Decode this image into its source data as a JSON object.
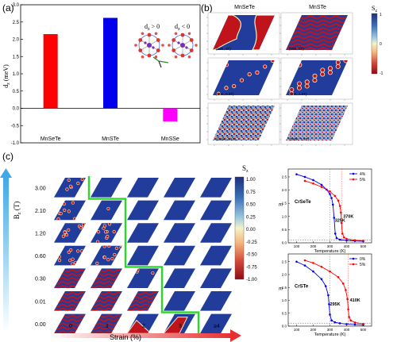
{
  "panel_labels": {
    "a": "(a)",
    "b": "(b)",
    "c": "(c)"
  },
  "panel_a": {
    "ylabel": "d_z (meV)",
    "ylabel_main": "d",
    "ylabel_sub": "z",
    "ylabel_unit": " (meV)",
    "inset_left": "d_z > 0",
    "inset_left_main": "d",
    "inset_left_sub": "z",
    "inset_left_rest": " > 0",
    "inset_right": "d_z < 0",
    "inset_right_main": "d",
    "inset_right_sub": "z",
    "inset_right_rest": " < 0",
    "ytick_labels": [
      "3.0",
      "2.5",
      "2.0",
      "1.5",
      "1.0",
      "0.5",
      "0.0",
      "-0.5",
      "-1.0"
    ]
  },
  "panel_b": {
    "col_titles": [
      "MnSeTe",
      "MnSTe"
    ],
    "colorbar_label": "S_z",
    "colorbar_main": "S",
    "colorbar_sub": "z",
    "colorbar_ticks": [
      "1",
      "0",
      "-1"
    ],
    "frame_labels": [
      [
        "(10K, 0T)",
        "(10K, 0T)"
      ],
      [
        "(10K, 0.5T)",
        "(10K, 1.5T)"
      ],
      [
        "(150K, 0.5T)",
        "(150K, 1.5T)"
      ]
    ]
  },
  "panel_c": {
    "ylabel_main": "B",
    "ylabel_sub": "z",
    "ylabel_unit": " (T)",
    "field_labels": [
      "3.00",
      "2.10",
      "1.20",
      "0.60",
      "0.30",
      "0.01",
      "0.00"
    ],
    "strain_labels": [
      "0",
      "1",
      "2",
      "3",
      "≥4"
    ],
    "xlabel": "Strain (%)",
    "colorbar_main": "S",
    "colorbar_sub": "z",
    "colorbar_ticks": [
      "1.00",
      "0.75",
      "0.50",
      "0.25",
      "0.00",
      "-0.25",
      "-0.50",
      "-0.75",
      "-1.00"
    ]
  },
  "mt_top": {
    "material": "CrSeTe",
    "ylabel": "m",
    "xlabel": "Temperature (K)",
    "legend": [
      "4%",
      "5%"
    ],
    "tc_label": "325K",
    "tc_label2": "370K",
    "xticks": [
      "100",
      "200",
      "300",
      "400",
      "500"
    ],
    "yticks": [
      "2.5",
      "2.0",
      "1.5",
      "1.0",
      "0.5",
      "0.0"
    ]
  },
  "mt_bottom": {
    "material": "CrSTe",
    "ylabel": "m",
    "xlabel": "Temperature (K)",
    "legend": [
      "0%",
      "5%"
    ],
    "tc_label": "295K",
    "tc_label2": "410K",
    "xticks": [
      "100",
      "200",
      "300",
      "400",
      "500"
    ],
    "yticks": [
      "2.5",
      "2.0",
      "1.5",
      "1.0",
      "0.5",
      "0.0"
    ]
  },
  "colors": {
    "red": "#ff0000",
    "blue": "#0000ee",
    "magenta": "#ff00ff",
    "spin_blue": "#213c9a",
    "spin_red": "#c0141c",
    "green_boundary": "#29d829",
    "arrow_blue": "#3fa8e8",
    "arrow_red": "#e83030"
  },
  "chart_data": [
    {
      "type": "bar",
      "panel": "a",
      "categories": [
        "MnSeTe",
        "MnSTe",
        "MnSSe"
      ],
      "values": [
        2.15,
        2.62,
        -0.38
      ],
      "colors": [
        "#ff0000",
        "#0000ee",
        "#ff00ff"
      ],
      "ylabel": "d_z (meV)",
      "ylim": [
        -1.0,
        3.0
      ]
    },
    {
      "type": "line",
      "panel": "c-top",
      "title": "CrSeTe",
      "xlabel": "Temperature (K)",
      "ylabel": "m",
      "xlim": [
        50,
        550
      ],
      "ylim": [
        0,
        2.8
      ],
      "series": [
        {
          "name": "4%",
          "color": "#0000ee",
          "x": [
            100,
            150,
            200,
            250,
            280,
            300,
            310,
            318,
            325,
            332,
            340,
            360,
            400,
            450,
            500
          ],
          "y": [
            2.6,
            2.5,
            2.38,
            2.2,
            2.02,
            1.85,
            1.7,
            1.45,
            0.95,
            0.35,
            0.18,
            0.12,
            0.09,
            0.07,
            0.06
          ]
        },
        {
          "name": "5%",
          "color": "#ff0000",
          "x": [
            150,
            200,
            250,
            300,
            330,
            350,
            360,
            366,
            370,
            375,
            385,
            400,
            450,
            500
          ],
          "y": [
            2.35,
            2.25,
            2.12,
            1.95,
            1.78,
            1.6,
            1.4,
            1.15,
            0.75,
            0.35,
            0.2,
            0.15,
            0.1,
            0.08
          ]
        }
      ]
    },
    {
      "type": "line",
      "panel": "c-bottom",
      "title": "CrSTe",
      "xlabel": "Temperature (K)",
      "ylabel": "m",
      "xlim": [
        50,
        550
      ],
      "ylim": [
        0,
        2.8
      ],
      "series": [
        {
          "name": "0%",
          "color": "#0000ee",
          "x": [
            100,
            150,
            200,
            250,
            275,
            290,
            295,
            300,
            310,
            330,
            360,
            400,
            450,
            500
          ],
          "y": [
            2.5,
            2.35,
            2.12,
            1.82,
            1.55,
            1.2,
            0.85,
            0.45,
            0.22,
            0.15,
            0.11,
            0.08,
            0.06,
            0.05
          ]
        },
        {
          "name": "5%",
          "color": "#ff0000",
          "x": [
            150,
            200,
            250,
            300,
            350,
            380,
            395,
            405,
            410,
            415,
            425,
            450,
            500
          ],
          "y": [
            2.55,
            2.45,
            2.3,
            2.12,
            1.9,
            1.65,
            1.4,
            1.05,
            0.65,
            0.35,
            0.22,
            0.14,
            0.09
          ]
        }
      ]
    }
  ]
}
